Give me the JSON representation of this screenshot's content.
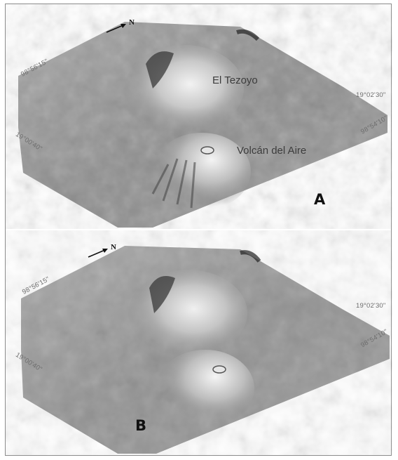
{
  "north_symbol": "N",
  "panels": [
    {
      "letter": "A",
      "coords": {
        "top_left": "98°56'15\"",
        "left": "19°00'40\"",
        "right_top": "19°02'30\"",
        "right_bottom": "98°54'10\""
      },
      "features": [
        {
          "name": "El Tezoyo"
        },
        {
          "name": "Volcán del Aire"
        }
      ]
    },
    {
      "letter": "B",
      "coords": {
        "top_left": "98°56'15\"",
        "left": "19°00'40\"",
        "right_top": "19°02'30\"",
        "right_bottom": "98°54'10\""
      },
      "features": []
    }
  ]
}
